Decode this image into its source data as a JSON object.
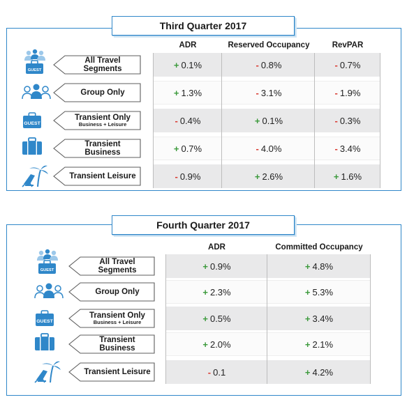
{
  "q3": {
    "title": "Third Quarter 2017",
    "columns": [
      "ADR",
      "Reserved Occupancy",
      "RevPAR"
    ],
    "rows": [
      {
        "label": "All Travel Segments",
        "sub": "",
        "icon": "people-and-guest-luggage-icon",
        "values": [
          {
            "sign": "+",
            "v": "0.1%"
          },
          {
            "sign": "-",
            "v": "0.8%"
          },
          {
            "sign": "-",
            "v": "0.7%"
          }
        ]
      },
      {
        "label": "Group Only",
        "sub": "",
        "icon": "group-people-icon",
        "values": [
          {
            "sign": "+",
            "v": "1.3%"
          },
          {
            "sign": "-",
            "v": "3.1%"
          },
          {
            "sign": "-",
            "v": "1.9%"
          }
        ]
      },
      {
        "label": "Transient Only",
        "sub": "Business + Leisure",
        "icon": "guest-luggage-icon",
        "values": [
          {
            "sign": "-",
            "v": "0.4%"
          },
          {
            "sign": "+",
            "v": "0.1%"
          },
          {
            "sign": "-",
            "v": "0.3%"
          }
        ]
      },
      {
        "label": "Transient Business",
        "sub": "",
        "icon": "briefcase-icon",
        "values": [
          {
            "sign": "+",
            "v": "0.7%"
          },
          {
            "sign": "-",
            "v": "4.0%"
          },
          {
            "sign": "-",
            "v": "3.4%"
          }
        ]
      },
      {
        "label": "Transient Leisure",
        "sub": "",
        "icon": "beach-chair-palm-icon",
        "values": [
          {
            "sign": "-",
            "v": "0.9%"
          },
          {
            "sign": "+",
            "v": "2.6%"
          },
          {
            "sign": "+",
            "v": "1.6%"
          }
        ]
      }
    ]
  },
  "q4": {
    "title": "Fourth Quarter 2017",
    "columns": [
      "ADR",
      "Committed Occupancy"
    ],
    "rows": [
      {
        "label": "All Travel Segments",
        "sub": "",
        "icon": "people-and-guest-luggage-icon",
        "values": [
          {
            "sign": "+",
            "v": "0.9%"
          },
          {
            "sign": "+",
            "v": "4.8%"
          }
        ]
      },
      {
        "label": "Group Only",
        "sub": "",
        "icon": "group-people-icon",
        "values": [
          {
            "sign": "+",
            "v": "2.3%"
          },
          {
            "sign": "+",
            "v": "5.3%"
          }
        ]
      },
      {
        "label": "Transient Only",
        "sub": "Business + Leisure",
        "icon": "guest-luggage-icon",
        "values": [
          {
            "sign": "+",
            "v": "0.5%"
          },
          {
            "sign": "+",
            "v": "3.4%"
          }
        ]
      },
      {
        "label": "Transient Business",
        "sub": "",
        "icon": "briefcase-icon",
        "values": [
          {
            "sign": "+",
            "v": "2.0%"
          },
          {
            "sign": "+",
            "v": "2.1%"
          }
        ]
      },
      {
        "label": "Transient Leisure",
        "sub": "",
        "icon": "beach-chair-palm-icon",
        "values": [
          {
            "sign": "-",
            "v": "0.1"
          },
          {
            "sign": "+",
            "v": "4.2%"
          }
        ]
      }
    ]
  },
  "icon_text": "GUEST",
  "colors": {
    "accent": "#2f87c9",
    "positive": "#3c9a3c",
    "negative": "#d93a32",
    "shade": "#e9e9ea"
  }
}
